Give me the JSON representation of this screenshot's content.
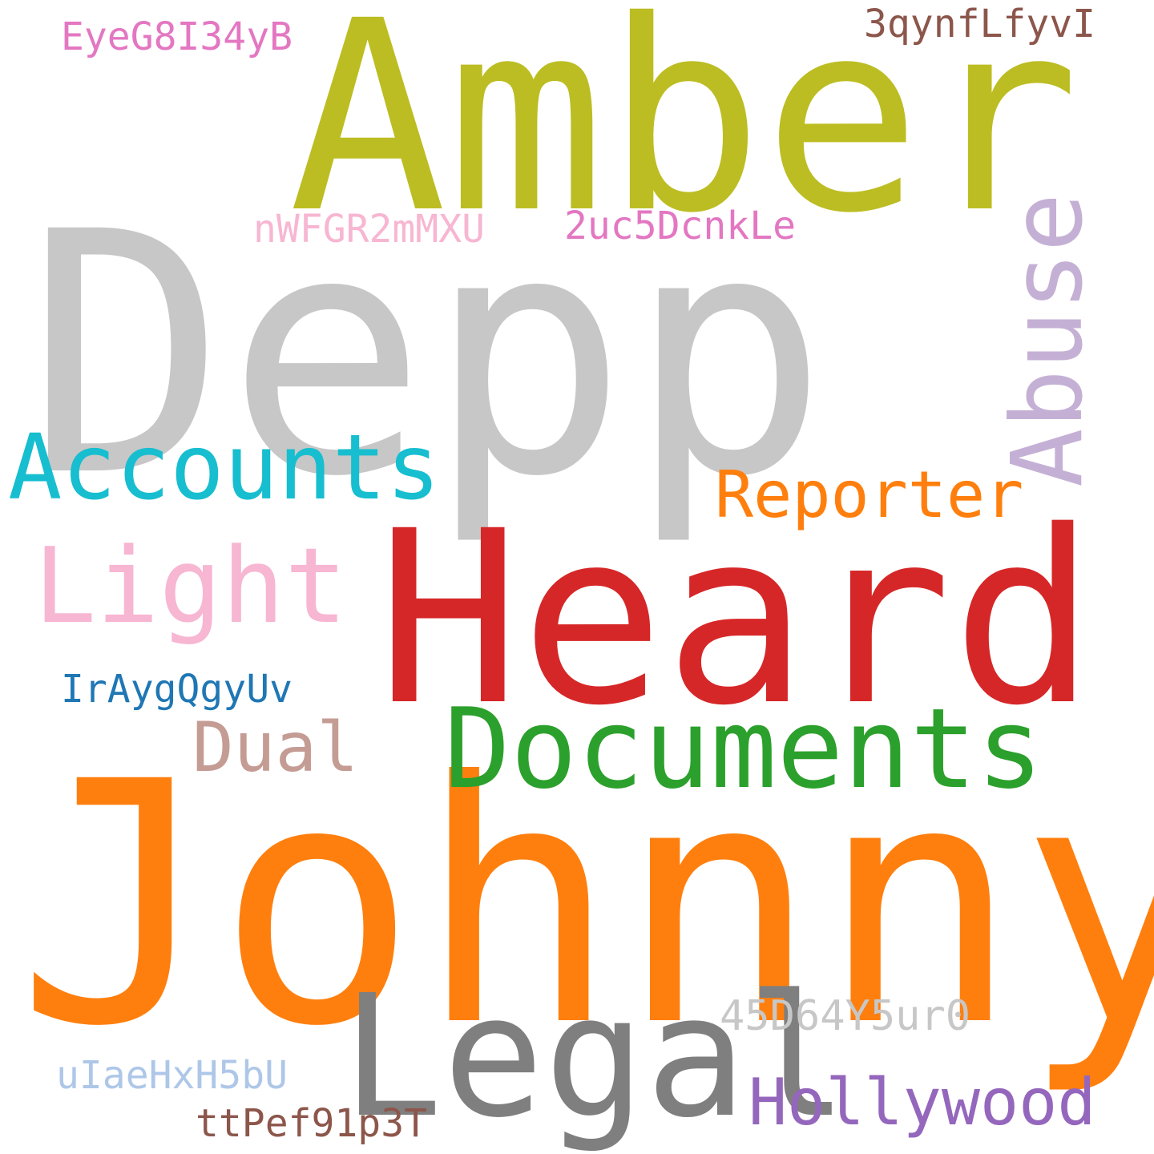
{
  "word_cloud": {
    "background": "#ffffff",
    "words": [
      {
        "text": "Depp",
        "color": "#c7c7c7",
        "orientation": "horizontal"
      },
      {
        "text": "Johnny",
        "color": "#ff7f0e",
        "orientation": "horizontal"
      },
      {
        "text": "Heard",
        "color": "#d62728",
        "orientation": "horizontal"
      },
      {
        "text": "Amber",
        "color": "#bcbd22",
        "orientation": "horizontal"
      },
      {
        "text": "Abuse",
        "color": "#c5b0d5",
        "orientation": "vertical"
      },
      {
        "text": "Legal",
        "color": "#7f7f7f",
        "orientation": "horizontal"
      },
      {
        "text": "Documents",
        "color": "#2ca02c",
        "orientation": "horizontal"
      },
      {
        "text": "Accounts",
        "color": "#17becf",
        "orientation": "horizontal"
      },
      {
        "text": "Light",
        "color": "#f7b6d2",
        "orientation": "horizontal"
      },
      {
        "text": "Reporter",
        "color": "#ff7f0e",
        "orientation": "horizontal"
      },
      {
        "text": "Hollywood",
        "color": "#9467bd",
        "orientation": "horizontal"
      },
      {
        "text": "Dual",
        "color": "#c49c94",
        "orientation": "horizontal"
      },
      {
        "text": "IrAygQgyUv",
        "color": "#1f77b4",
        "orientation": "horizontal"
      },
      {
        "text": "EyeG8I34yB",
        "color": "#e377c2",
        "orientation": "horizontal"
      },
      {
        "text": "3qynfLfyvI",
        "color": "#8c564b",
        "orientation": "horizontal"
      },
      {
        "text": "nWFGR2mMXU",
        "color": "#f7b6d2",
        "orientation": "horizontal"
      },
      {
        "text": "2uc5DcnkLe",
        "color": "#e377c2",
        "orientation": "horizontal"
      },
      {
        "text": "45D64Y5ur0",
        "color": "#c7c7c7",
        "orientation": "horizontal"
      },
      {
        "text": "uIaeHxH5bU",
        "color": "#aec7e8",
        "orientation": "horizontal"
      },
      {
        "text": "ttPef91p3T",
        "color": "#8c564b",
        "orientation": "horizontal"
      }
    ]
  }
}
